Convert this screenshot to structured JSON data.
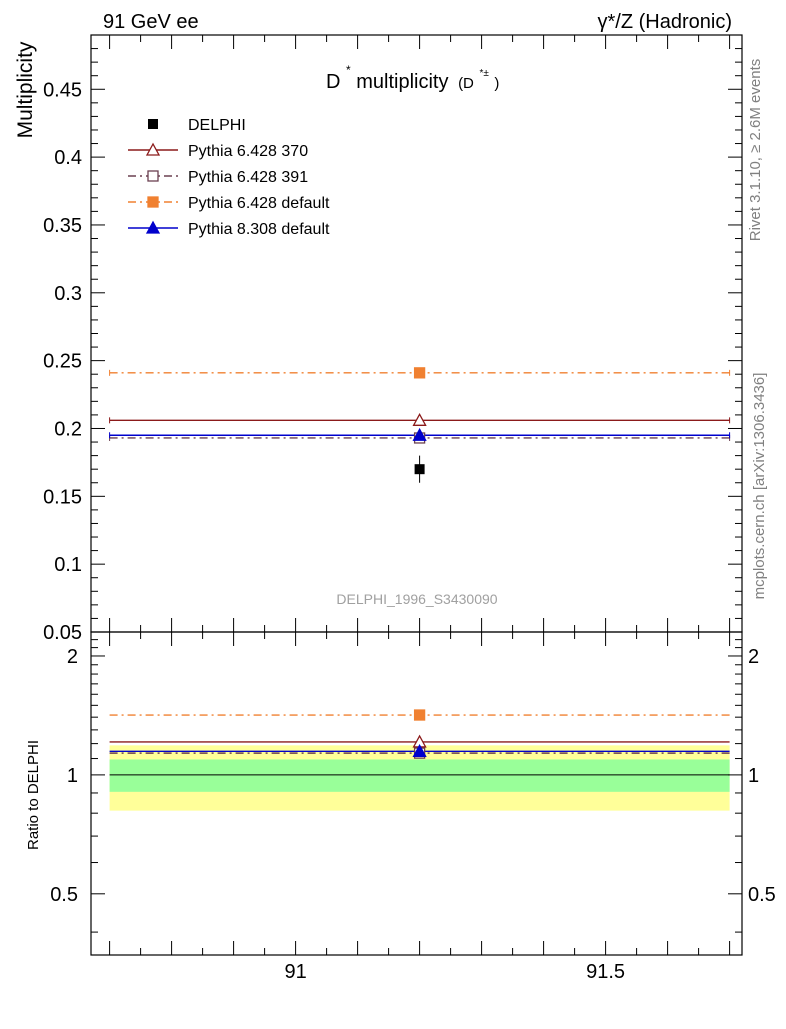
{
  "header": {
    "left": "91 GeV ee",
    "right": "γ*/Z (Hadronic)"
  },
  "side": {
    "rivet": "Rivet 3.1.10, ≥ 2.6M events",
    "mcplots": "mcplots.cern.ch [arXiv:1306.3436]"
  },
  "colors": {
    "delphi": "#000000",
    "p370": "#8b1a1a",
    "p391": "#6b4050",
    "p6default": "#f08030",
    "p8default": "#0000cc",
    "band_inner": "#99ff99",
    "band_outer": "#ffff99"
  },
  "chart_data": {
    "type": "scatter",
    "title_main": "D",
    "title_sup": "*",
    "title_text": " multiplicity",
    "title_paren_open": "(D",
    "title_paren_sup": "*±",
    "title_paren_close": ")",
    "ylabel": "Multiplicity",
    "ratio_ylabel": "Ratio to DELPHI",
    "watermark": "DELPHI_1996_S3430090",
    "xlim": [
      90.67,
      91.72
    ],
    "ylim": [
      0.05,
      0.49
    ],
    "ratio_ylim": [
      0.35,
      2.3
    ],
    "bin": [
      90.7,
      91.7
    ],
    "x_center": 91.2,
    "x_ticks": [
      91,
      91.5
    ],
    "x_tick_labels": [
      "91",
      "91.5"
    ],
    "y_ticks": [
      0.05,
      0.1,
      0.15,
      0.2,
      0.25,
      0.3,
      0.35,
      0.4,
      0.45
    ],
    "y_tick_labels": [
      "0.05",
      "0.1",
      "0.15",
      "0.2",
      "0.25",
      "0.3",
      "0.35",
      "0.4",
      "0.45"
    ],
    "ratio_ticks": [
      0.5,
      1,
      2
    ],
    "ratio_tick_labels": [
      "0.5",
      "1",
      "2"
    ],
    "data": {
      "name": "DELPHI",
      "value": 0.17,
      "err": 0.01
    },
    "series": [
      {
        "name": "Pythia 6.428 370",
        "value": 0.206,
        "marker": "triangle-open",
        "dash": "",
        "color_key": "p370"
      },
      {
        "name": "Pythia 6.428 391",
        "value": 0.193,
        "marker": "square-open",
        "dash": "8,4,2,4",
        "color_key": "p391"
      },
      {
        "name": "Pythia 6.428 default",
        "value": 0.241,
        "marker": "square",
        "dash": "8,4,2,4",
        "color_key": "p6default"
      },
      {
        "name": "Pythia 8.308 default",
        "value": 0.195,
        "marker": "triangle",
        "dash": "",
        "color_key": "p8default"
      }
    ],
    "ratio_band_inner": [
      0.906,
      1.094
    ],
    "ratio_band_outer": [
      0.812,
      1.188
    ]
  }
}
